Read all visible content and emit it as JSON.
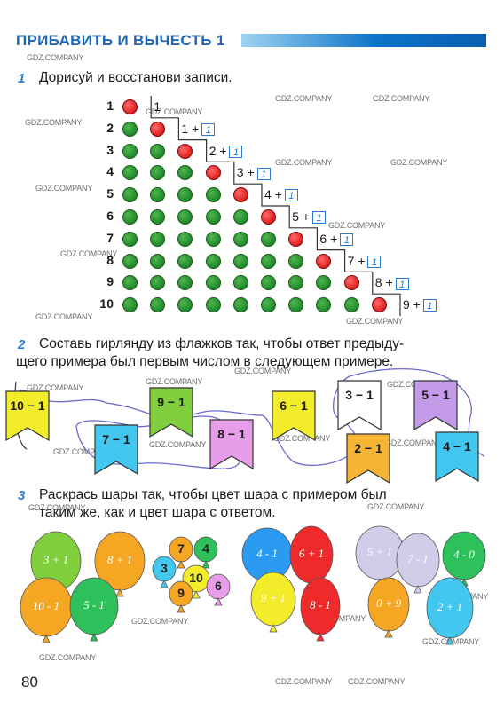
{
  "header": {
    "title": "ПРИБАВИТЬ И ВЫЧЕСТЬ 1"
  },
  "watermarks": [
    "GDZ.COMPANY"
  ],
  "task1": {
    "number": "1",
    "text": "Дорисуй и восстанови записи.",
    "rows": [
      {
        "label": "1",
        "expr": "1",
        "box": ""
      },
      {
        "label": "2",
        "expr": "1 +",
        "box": "1"
      },
      {
        "label": "3",
        "expr": "2 +",
        "box": "1"
      },
      {
        "label": "4",
        "expr": "3 +",
        "box": "1"
      },
      {
        "label": "5",
        "expr": "4 +",
        "box": "1"
      },
      {
        "label": "6",
        "expr": "5 +",
        "box": "1"
      },
      {
        "label": "7",
        "expr": "6 +",
        "box": "1"
      },
      {
        "label": "8",
        "expr": "7 +",
        "box": "1"
      },
      {
        "label": "9",
        "expr": "8 +",
        "box": "1"
      },
      {
        "label": "10",
        "expr": "9 +",
        "box": "1"
      }
    ],
    "colors": {
      "green": "#1f8a2a",
      "red": "#df1e1e"
    }
  },
  "task2": {
    "number": "2",
    "text_line1": "Составь гирлянду из флажков так, чтобы ответ предыду-",
    "text_line2": "щего примера был первым числом в следующем примере.",
    "flags": [
      {
        "text": "10 − 1",
        "color": "#f2ec2a"
      },
      {
        "text": "7 − 1",
        "color": "#42c8ef"
      },
      {
        "text": "9 − 1",
        "color": "#7fcf3c"
      },
      {
        "text": "8 − 1",
        "color": "#e79de9"
      },
      {
        "text": "6 − 1",
        "color": "#f2ec2a"
      },
      {
        "text": "3 − 1",
        "color": "#ffffff"
      },
      {
        "text": "2 − 1",
        "color": "#f5b433"
      },
      {
        "text": "5 − 1",
        "color": "#c39be8"
      },
      {
        "text": "4 − 1",
        "color": "#42c8ef"
      }
    ]
  },
  "task3": {
    "number": "3",
    "text_line1": "Раскрась шары так, чтобы цвет шара с примером был",
    "text_line2": "таким же, как и цвет шара с ответом.",
    "group1": [
      {
        "text": "3 + 1",
        "color": "#7fcf3c"
      },
      {
        "text": "8 + 1",
        "color": "#f5a623"
      },
      {
        "text": "10 - 1",
        "color": "#f5a623"
      },
      {
        "text": "5 - 1",
        "color": "#2ec05a"
      }
    ],
    "group2": [
      {
        "text": "7",
        "color": "#f5a623"
      },
      {
        "text": "4",
        "color": "#2ec05a"
      },
      {
        "text": "3",
        "color": "#42c8ef"
      },
      {
        "text": "10",
        "color": "#f2ec2a"
      },
      {
        "text": "9",
        "color": "#f5a623"
      },
      {
        "text": "6",
        "color": "#e79de9"
      }
    ],
    "group3": [
      {
        "text": "4 - 1",
        "color": "#2a9bf0"
      },
      {
        "text": "6 + 1",
        "color": "#ef2a2a"
      },
      {
        "text": "9 + 1",
        "color": "#f2ec2a"
      },
      {
        "text": "8 - 1",
        "color": "#ef2a2a"
      }
    ],
    "group4": [
      {
        "text": "5 + 1",
        "color": "#cfcde8"
      },
      {
        "text": "7 - 1",
        "color": "#cfcde8"
      },
      {
        "text": "4 - 0",
        "color": "#2ec05a"
      },
      {
        "text": "0 + 9",
        "color": "#f5a623"
      },
      {
        "text": "2 + 1",
        "color": "#42c8ef"
      }
    ]
  },
  "page_number": "80"
}
